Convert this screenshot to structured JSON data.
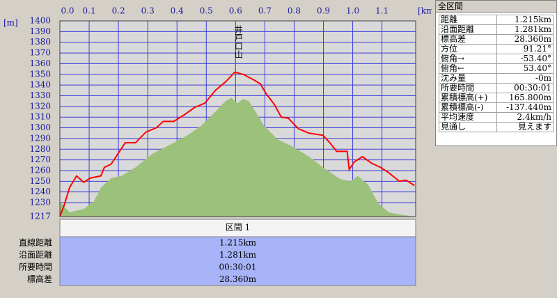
{
  "chart_data": {
    "type": "line",
    "x_unit": "[km]",
    "y_unit": "[m]",
    "xlim": [
      0,
      1.215
    ],
    "xticks": [
      {
        "value": 0,
        "label": "0.0"
      },
      0.1,
      0.2,
      0.3,
      0.4,
      0.5,
      0.6,
      0.7,
      0.8,
      0.9,
      {
        "value": 1,
        "label": "1.0"
      },
      1.1
    ],
    "ylim": [
      1217,
      1400
    ],
    "yticks": [
      1217,
      1230,
      1240,
      1250,
      1260,
      1270,
      1280,
      1290,
      1300,
      1310,
      1320,
      1330,
      1340,
      1350,
      1360,
      1370,
      1380,
      1390,
      1400
    ],
    "grid": true,
    "annotation": {
      "text": "井戸口山",
      "x": 0.6
    },
    "series": [
      {
        "color": "#ff0000",
        "x": [
          0,
          0.014,
          0.033,
          0.057,
          0.081,
          0.104,
          0.14,
          0.152,
          0.175,
          0.199,
          0.223,
          0.258,
          0.294,
          0.329,
          0.353,
          0.389,
          0.424,
          0.46,
          0.495,
          0.531,
          0.566,
          0.597,
          0.626,
          0.661,
          0.685,
          0.704,
          0.732,
          0.756,
          0.78,
          0.815,
          0.851,
          0.898,
          0.922,
          0.945,
          0.981,
          0.988,
          1.005,
          1.033,
          1.064,
          1.095,
          1.123,
          1.159,
          1.182,
          1.211
        ],
        "values": [
          1217,
          1227,
          1244,
          1255,
          1249,
          1253,
          1255,
          1263,
          1266,
          1276,
          1286,
          1286,
          1296,
          1300,
          1306,
          1306,
          1312,
          1319,
          1323,
          1335,
          1343,
          1352,
          1350,
          1345,
          1341,
          1332,
          1322,
          1310,
          1309,
          1299,
          1295,
          1293,
          1286,
          1278,
          1278,
          1261,
          1268,
          1273,
          1267,
          1263,
          1258,
          1250,
          1251,
          1246
        ]
      },
      {
        "color": "#9cc17a",
        "x": [
          0,
          0.033,
          0.081,
          0.116,
          0.14,
          0.175,
          0.211,
          0.258,
          0.318,
          0.389,
          0.436,
          0.483,
          0.531,
          0.566,
          0.585,
          0.607,
          0.626,
          0.645,
          0.668,
          0.697,
          0.744,
          0.791,
          0.851,
          0.898,
          0.957,
          0.993,
          1.017,
          1.052,
          1.088,
          1.123,
          1.159,
          1.211
        ],
        "values": [
          1231,
          1221,
          1224,
          1231,
          1244,
          1253,
          1255,
          1263,
          1276,
          1286,
          1293,
          1302,
          1315,
          1325,
          1328,
          1323,
          1327,
          1325,
          1315,
          1302,
          1289,
          1283,
          1273,
          1263,
          1252,
          1250,
          1255,
          1247,
          1229,
          1221,
          1219,
          1217
        ]
      }
    ]
  },
  "section_table": {
    "header": "区間 1",
    "rows": [
      [
        "直線距離",
        "1.215km"
      ],
      [
        "沿面距離",
        "1.281km"
      ],
      [
        "所要時間",
        "00:30:01"
      ],
      [
        "標高差",
        "28.360m"
      ]
    ]
  },
  "summary": {
    "title": "全区間",
    "rows": [
      [
        "距離",
        "1.215km"
      ],
      [
        "沿面距離",
        "1.281km"
      ],
      [
        "標高差",
        "28.360m"
      ],
      [
        "方位",
        "91.21°"
      ],
      [
        "俯角→",
        "-53.40°"
      ],
      [
        "俯角←",
        "53.40°"
      ],
      [
        "沈み量",
        "-0m"
      ],
      [
        "所要時間",
        "00:30:01"
      ],
      [
        "累積標高(+)",
        "165.800m"
      ],
      [
        "累積標高(-)",
        "-137.440m"
      ],
      [
        "平均速度",
        "2.4km/h"
      ],
      [
        "見通し",
        "見えます"
      ]
    ]
  }
}
